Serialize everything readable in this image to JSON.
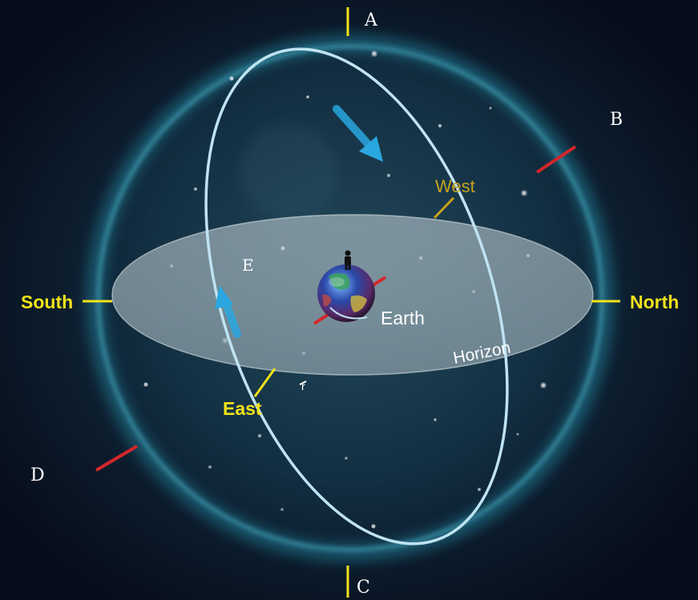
{
  "labels": {
    "A": "A",
    "B": "B",
    "C": "C",
    "D": "D",
    "E": "E",
    "south": "South",
    "north": "North",
    "east": "East",
    "west": "West",
    "earth": "Earth",
    "horizon": "Horizon",
    "r": "r"
  },
  "colors": {
    "background": "#0b1526",
    "sphere_glow": "#2fb8d6",
    "horizon_plane": "#b9c6cc",
    "orbit_line": "#bfe3f2",
    "yellow": "#f2e21a",
    "west_label": "#c8a21e",
    "red_axis": "#d4262b",
    "arrow_blue": "#2aa7e0",
    "white": "#ffffff"
  },
  "icons": [
    "observer-icon",
    "earth-globe-icon",
    "direction-arrow-icon"
  ]
}
